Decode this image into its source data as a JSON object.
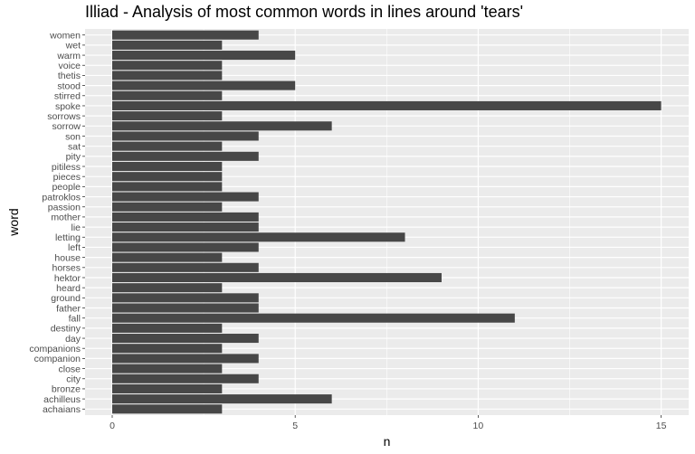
{
  "chart_data": {
    "type": "bar",
    "orientation": "horizontal",
    "title": "Illiad - Analysis of most common words in lines around 'tears'",
    "xlabel": "n",
    "ylabel": "word",
    "xlim": [
      0,
      15
    ],
    "xticks": [
      0,
      5,
      10,
      15
    ],
    "grid": true,
    "categories": [
      "achaians",
      "achilleus",
      "bronze",
      "city",
      "close",
      "companion",
      "companions",
      "day",
      "destiny",
      "fall",
      "father",
      "ground",
      "heard",
      "hektor",
      "horses",
      "house",
      "left",
      "letting",
      "lie",
      "mother",
      "passion",
      "patroklos",
      "people",
      "pieces",
      "pitiless",
      "pity",
      "sat",
      "son",
      "sorrow",
      "sorrows",
      "spoke",
      "stirred",
      "stood",
      "thetis",
      "voice",
      "warm",
      "wet",
      "women"
    ],
    "values": [
      3,
      6,
      3,
      4,
      3,
      4,
      3,
      4,
      3,
      11,
      4,
      4,
      3,
      9,
      4,
      3,
      4,
      8,
      4,
      4,
      3,
      4,
      3,
      3,
      3,
      4,
      3,
      4,
      6,
      3,
      15,
      3,
      5,
      3,
      3,
      5,
      3,
      4
    ],
    "colors": {
      "bar": "#474747",
      "panel": "#ebebeb",
      "grid": "#ffffff"
    }
  }
}
